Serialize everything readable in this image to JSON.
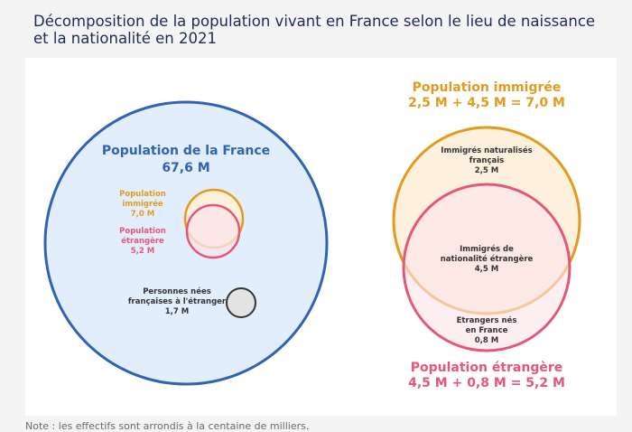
{
  "title": "Décomposition de la population vivant en France selon le lieu de naissance et la nationalité en 2021",
  "footnote": "Note : les effectifs sont arrondis à la centaine de milliers.",
  "colors": {
    "france": "#2f64b4",
    "france_fill": "#e3eefc",
    "immigree": "#e39b1e",
    "immigree_fill": "#fdf0dd",
    "etrangere": "#e4577a",
    "etrangere_fill": "#fbe4ea",
    "nes_etranger": "#333333",
    "nes_etranger_fill": "#e3e3e3"
  },
  "left": {
    "france": {
      "label": "Population de la France",
      "value": "67,6 M"
    },
    "immigree": {
      "line1": "Population",
      "line2": "immigrée",
      "value": "7,0 M"
    },
    "etrangere": {
      "line1": "Population",
      "line2": "étrangère",
      "value": "5,2 M"
    },
    "nes_etranger": {
      "line1": "Personnes nées",
      "line2": "françaises à l'étranger",
      "value": "1,7 M"
    }
  },
  "right": {
    "immigree": {
      "label": "Population immigrée",
      "equation": "2,5 M + 4,5 M = 7,0 M"
    },
    "etrangere": {
      "label": "Population étrangère",
      "equation": "4,5 M + 0,8 M = 5,2 M"
    },
    "naturalises": {
      "line1": "Immigrés naturalisés",
      "line2": "français",
      "value": "2,5 M"
    },
    "intersection": {
      "line1": "Immigrés de",
      "line2": "nationalité étrangère",
      "value": "4,5 M"
    },
    "nes_france": {
      "line1": "Etrangers nés",
      "line2": "en France",
      "value": "0,8 M"
    }
  }
}
